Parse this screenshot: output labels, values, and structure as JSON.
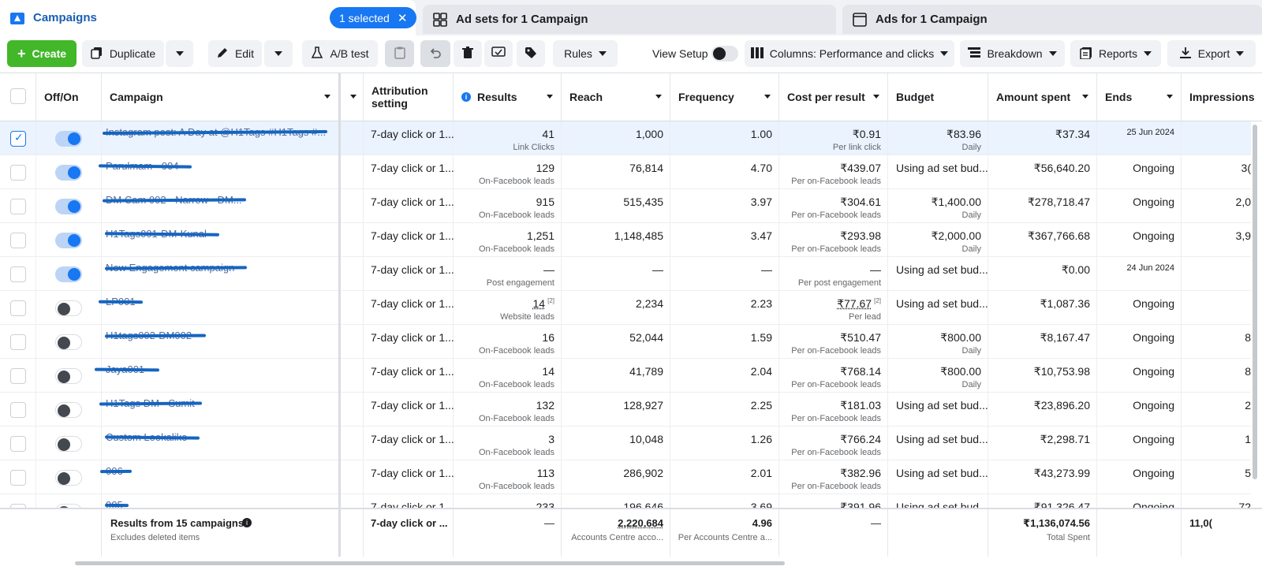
{
  "tabs": {
    "campaigns": "Campaigns",
    "selected_pill": "1 selected",
    "ad_sets": "Ad sets for 1 Campaign",
    "ads": "Ads for 1 Campaign"
  },
  "toolbar": {
    "create": "Create",
    "duplicate": "Duplicate",
    "edit": "Edit",
    "ab_test": "A/B test",
    "rules": "Rules",
    "view_setup": "View Setup",
    "columns": "Columns: Performance and clicks",
    "breakdown": "Breakdown",
    "reports": "Reports",
    "export": "Export"
  },
  "columns": {
    "off_on": "Off/On",
    "campaign": "Campaign",
    "attribution": "Attribution setting",
    "results": "Results",
    "reach": "Reach",
    "frequency": "Frequency",
    "cost_per_result": "Cost per result",
    "budget": "Budget",
    "amount_spent": "Amount spent",
    "ends": "Ends",
    "impressions": "Impressions"
  },
  "rows": [
    {
      "name": "Instagram post: A Day at @H1Tags #H1Tags #...",
      "on": true,
      "selected": true,
      "attribution": "7-day click or 1...",
      "results": "41",
      "results_sub": "Link Clicks",
      "reach": "1,000",
      "frequency": "1.00",
      "cpr": "₹0.91",
      "cpr_sub": "Per link click",
      "budget": "₹83.96",
      "budget_sub": "Daily",
      "spent": "₹37.34",
      "ends": "25 Jun 2024",
      "impressions": ""
    },
    {
      "name": "Parulmam - 004",
      "on": true,
      "selected": false,
      "attribution": "7-day click or 1...",
      "results": "129",
      "results_sub": "On-Facebook leads",
      "reach": "76,814",
      "frequency": "4.70",
      "cpr": "₹439.07",
      "cpr_sub": "Per on-Facebook leads",
      "budget": "Using ad set bud...",
      "budget_sub": "",
      "spent": "₹56,640.20",
      "ends": "Ongoing",
      "impressions": "3("
    },
    {
      "name": "DM Cam 002 - Narrow - DM...",
      "on": true,
      "selected": false,
      "attribution": "7-day click or 1...",
      "results": "915",
      "results_sub": "On-Facebook leads",
      "reach": "515,435",
      "frequency": "3.97",
      "cpr": "₹304.61",
      "cpr_sub": "Per on-Facebook leads",
      "budget": "₹1,400.00",
      "budget_sub": "Daily",
      "spent": "₹278,718.47",
      "ends": "Ongoing",
      "impressions": "2,0"
    },
    {
      "name": "H1Tags001-DM-Kunal",
      "on": true,
      "selected": false,
      "attribution": "7-day click or 1...",
      "results": "1,251",
      "results_sub": "On-Facebook leads",
      "reach": "1,148,485",
      "frequency": "3.47",
      "cpr": "₹293.98",
      "cpr_sub": "Per on-Facebook leads",
      "budget": "₹2,000.00",
      "budget_sub": "Daily",
      "spent": "₹367,766.68",
      "ends": "Ongoing",
      "impressions": "3,9"
    },
    {
      "name": "New Engagement campaign",
      "on": true,
      "selected": false,
      "attribution": "7-day click or 1...",
      "results": "—",
      "results_sub": "Post engagement",
      "reach": "—",
      "frequency": "—",
      "cpr": "—",
      "cpr_sub": "Per post engagement",
      "budget": "Using ad set bud...",
      "budget_sub": "",
      "spent": "₹0.00",
      "ends": "24 Jun 2024",
      "impressions": ""
    },
    {
      "name": "LP001",
      "on": false,
      "selected": false,
      "attribution": "7-day click or 1...",
      "results": "14",
      "results_sup": "[2]",
      "results_sub": "Website leads",
      "reach": "2,234",
      "frequency": "2.23",
      "cpr": "₹77.67",
      "cpr_sup": "[2]",
      "cpr_sub": "Per lead",
      "budget": "Using ad set bud...",
      "budget_sub": "",
      "spent": "₹1,087.36",
      "ends": "Ongoing",
      "impressions": ""
    },
    {
      "name": "H1tags002-DM002",
      "on": false,
      "selected": false,
      "attribution": "7-day click or 1...",
      "results": "16",
      "results_sub": "On-Facebook leads",
      "reach": "52,044",
      "frequency": "1.59",
      "cpr": "₹510.47",
      "cpr_sub": "Per on-Facebook leads",
      "budget": "₹800.00",
      "budget_sub": "Daily",
      "spent": "₹8,167.47",
      "ends": "Ongoing",
      "impressions": "8"
    },
    {
      "name": "Jaya001",
      "on": false,
      "selected": false,
      "attribution": "7-day click or 1...",
      "results": "14",
      "results_sub": "On-Facebook leads",
      "reach": "41,789",
      "frequency": "2.04",
      "cpr": "₹768.14",
      "cpr_sub": "Per on-Facebook leads",
      "budget": "₹800.00",
      "budget_sub": "Daily",
      "spent": "₹10,753.98",
      "ends": "Ongoing",
      "impressions": "8"
    },
    {
      "name": "H1Tags DM - Sumit",
      "on": false,
      "selected": false,
      "attribution": "7-day click or 1...",
      "results": "132",
      "results_sub": "On-Facebook leads",
      "reach": "128,927",
      "frequency": "2.25",
      "cpr": "₹181.03",
      "cpr_sub": "Per on-Facebook leads",
      "budget": "Using ad set bud...",
      "budget_sub": "",
      "spent": "₹23,896.20",
      "ends": "Ongoing",
      "impressions": "2"
    },
    {
      "name": "Custom Lookalike",
      "on": false,
      "selected": false,
      "attribution": "7-day click or 1...",
      "results": "3",
      "results_sub": "On-Facebook leads",
      "reach": "10,048",
      "frequency": "1.26",
      "cpr": "₹766.24",
      "cpr_sub": "Per on-Facebook leads",
      "budget": "Using ad set bud...",
      "budget_sub": "",
      "spent": "₹2,298.71",
      "ends": "Ongoing",
      "impressions": "1"
    },
    {
      "name": "006",
      "on": false,
      "selected": false,
      "attribution": "7-day click or 1...",
      "results": "113",
      "results_sub": "On-Facebook leads",
      "reach": "286,902",
      "frequency": "2.01",
      "cpr": "₹382.96",
      "cpr_sub": "Per on-Facebook leads",
      "budget": "Using ad set bud...",
      "budget_sub": "",
      "spent": "₹43,273.99",
      "ends": "Ongoing",
      "impressions": "5"
    },
    {
      "name": "005",
      "on": false,
      "selected": false,
      "attribution": "7-day click or 1...",
      "results": "233",
      "results_sub": "",
      "reach": "196,646",
      "frequency": "3.69",
      "cpr": "₹391.96",
      "cpr_sub": "",
      "budget": "Using ad set bud...",
      "budget_sub": "",
      "spent": "₹91,326.47",
      "ends": "Ongoing",
      "impressions": "72"
    }
  ],
  "footer": {
    "title": "Results from 15 campaigns",
    "subtitle": "Excludes deleted items",
    "attribution": "7-day click or ...",
    "results": "—",
    "reach": "2,220,684",
    "reach_sub": "Accounts Centre acco...",
    "frequency": "4.96",
    "frequency_sub": "Per Accounts Centre a...",
    "cpr": "—",
    "spent": "₹1,136,074.56",
    "spent_sub": "Total Spent",
    "impressions": "11,0("
  },
  "colors": {
    "accent": "#1877f2",
    "create_green": "#42b72a",
    "selected_row": "#ebf3ff",
    "redaction": "#1565c0"
  }
}
